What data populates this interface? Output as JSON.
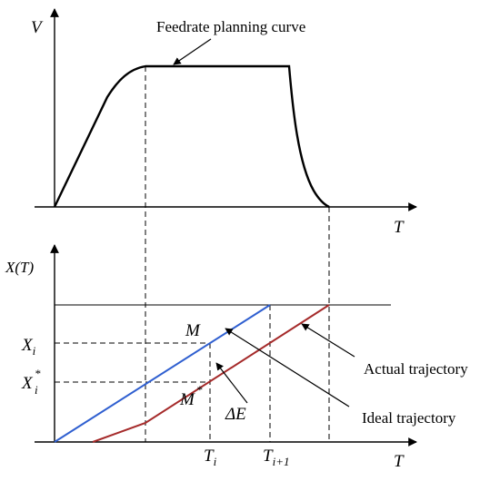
{
  "labels": {
    "v_axis": "V",
    "t_axis_top": "T",
    "feedrate_curve": "Feedrate planning curve",
    "x_axis": "X(T)",
    "t_axis_bottom": "T",
    "xi": "X",
    "xi_sub": "i",
    "xi_star": "X",
    "xi_star_sup": "*",
    "xi_star_sub": "i",
    "m": "M",
    "m_star": "M",
    "m_star_sup": "*",
    "delta_e": "ΔE",
    "ti": "T",
    "ti_sub": "i",
    "ti1": "T",
    "ti1_sub": "i+1",
    "actual": "Actual trajectory",
    "ideal": "Ideal trajectory"
  },
  "colors": {
    "axis": "#000000",
    "ideal_line": "#2f5fd0",
    "actual_line": "#a52a2a",
    "annotation": "#000000"
  }
}
